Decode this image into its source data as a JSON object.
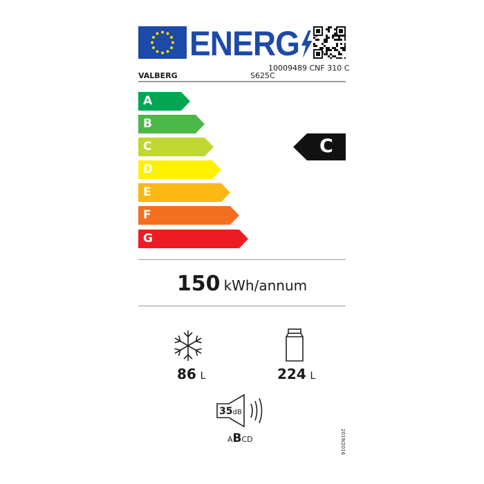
{
  "header": {
    "logo_text": "ENERG",
    "brand": "VALBERG",
    "model_line1": "10009489 CNF 310 C",
    "model_line2": "S625C"
  },
  "scale": {
    "classes": [
      {
        "letter": "A",
        "color": "#00a651"
      },
      {
        "letter": "B",
        "color": "#4cb847"
      },
      {
        "letter": "C",
        "color": "#bfd730"
      },
      {
        "letter": "D",
        "color": "#fff200"
      },
      {
        "letter": "E",
        "color": "#fcb814"
      },
      {
        "letter": "F",
        "color": "#f37021"
      },
      {
        "letter": "G",
        "color": "#ed1c24"
      }
    ]
  },
  "rating": {
    "class": "C",
    "arrow_color": "#111111"
  },
  "consumption": {
    "value": "150",
    "unit": "kWh/annum"
  },
  "freezer": {
    "icon": "snowflake-icon",
    "value": "86",
    "unit": "L"
  },
  "fridge": {
    "icon": "fridge-icon",
    "value": "224",
    "unit": "L"
  },
  "noise": {
    "icon": "speaker-icon",
    "value": "35",
    "unit": "dB",
    "classes_pre": "A",
    "class_selected": "B",
    "classes_post": "CD"
  },
  "regulation": "2019/2016"
}
